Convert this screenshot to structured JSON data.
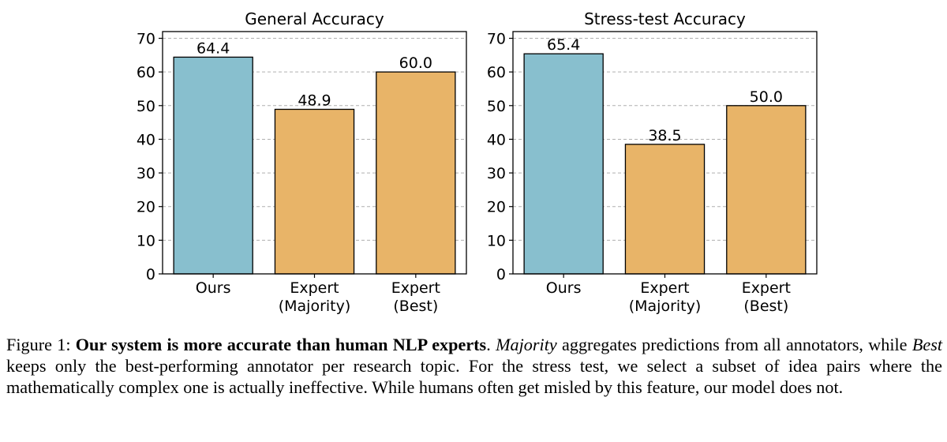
{
  "chart_data": [
    {
      "type": "bar",
      "title": "General Accuracy",
      "categories": [
        [
          "Ours"
        ],
        [
          "Expert",
          "(Majority)"
        ],
        [
          "Expert",
          "(Best)"
        ]
      ],
      "values": [
        64.4,
        48.9,
        60.0
      ],
      "value_labels": [
        "64.4",
        "48.9",
        "60.0"
      ],
      "colors": [
        "#88bfce",
        "#e8b468",
        "#e8b468"
      ],
      "yticks": [
        "0",
        "10",
        "20",
        "30",
        "40",
        "50",
        "60",
        "70"
      ],
      "ylim": [
        0,
        72
      ],
      "grid": "y-dashed",
      "xlabel": "",
      "ylabel": ""
    },
    {
      "type": "bar",
      "title": "Stress-test Accuracy",
      "categories": [
        [
          "Ours"
        ],
        [
          "Expert",
          "(Majority)"
        ],
        [
          "Expert",
          "(Best)"
        ]
      ],
      "values": [
        65.4,
        38.5,
        50.0
      ],
      "value_labels": [
        "65.4",
        "38.5",
        "50.0"
      ],
      "colors": [
        "#88bfce",
        "#e8b468",
        "#e8b468"
      ],
      "yticks": [
        "0",
        "10",
        "20",
        "30",
        "40",
        "50",
        "60",
        "70"
      ],
      "ylim": [
        0,
        72
      ],
      "grid": "y-dashed",
      "xlabel": "",
      "ylabel": ""
    }
  ],
  "caption": {
    "label": "Figure 1: ",
    "bold": "Our system is more accurate than human NLP experts",
    "text1": ". ",
    "italic1": "Majority",
    "text2": " aggregates predictions from all annotators, while ",
    "italic2": "Best",
    "text3": " keeps only the best-performing annotator per research topic. For the stress test, we select a subset of idea pairs where the mathematically complex one is actually ineffective. While humans often get misled by this feature, our model does not."
  }
}
